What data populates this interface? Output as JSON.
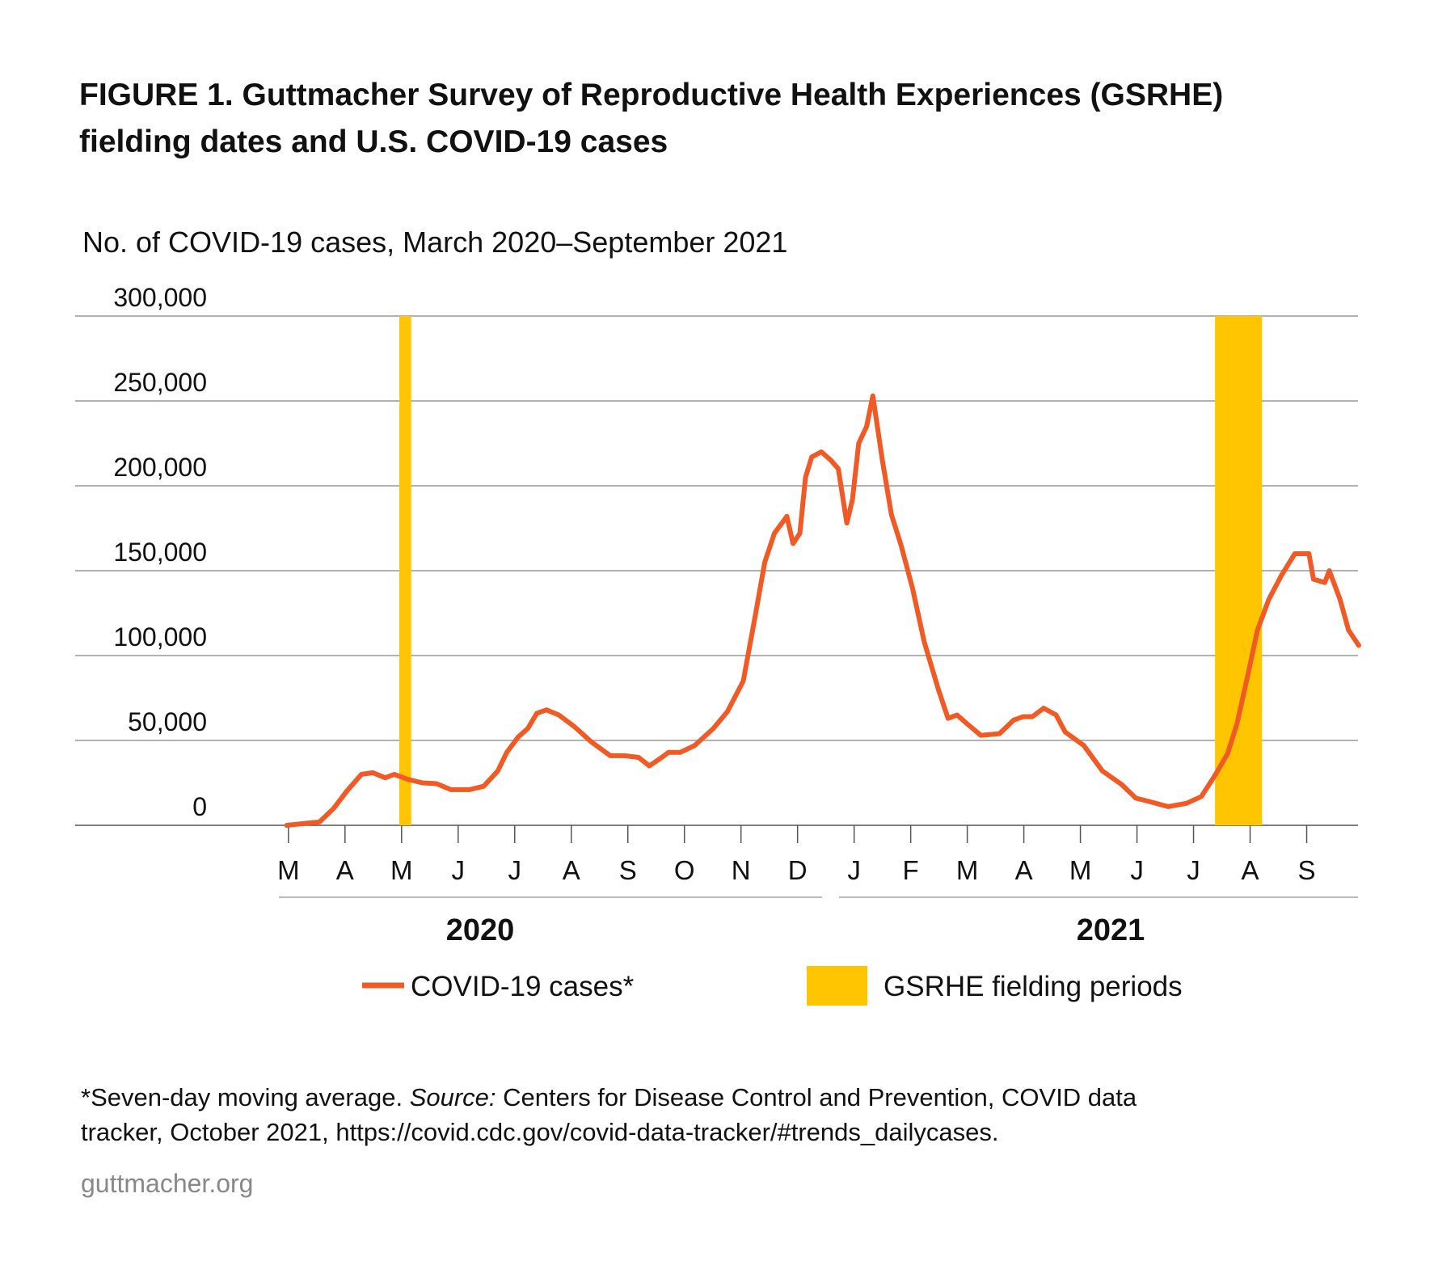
{
  "chart_data": {
    "type": "line",
    "title_lines": [
      "FIGURE 1. Guttmacher Survey of Reproductive Health Experiences (GSRHE)",
      "fielding dates and U.S. COVID-19 cases"
    ],
    "subtitle": "No. of COVID-19 cases, March 2020–September 2021",
    "xlim": [
      -3.77,
      18.95
    ],
    "xticks": [
      {
        "value": 0,
        "label": "M"
      },
      {
        "value": 1,
        "label": "A"
      },
      {
        "value": 2,
        "label": "M"
      },
      {
        "value": 3,
        "label": "J"
      },
      {
        "value": 4,
        "label": "J"
      },
      {
        "value": 5,
        "label": "A"
      },
      {
        "value": 6,
        "label": "S"
      },
      {
        "value": 7,
        "label": "O"
      },
      {
        "value": 8,
        "label": "N"
      },
      {
        "value": 9,
        "label": "D"
      },
      {
        "value": 10,
        "label": "J"
      },
      {
        "value": 11,
        "label": "F"
      },
      {
        "value": 12,
        "label": "M"
      },
      {
        "value": 13,
        "label": "A"
      },
      {
        "value": 14,
        "label": "M"
      },
      {
        "value": 15,
        "label": "J"
      },
      {
        "value": 16,
        "label": "J"
      },
      {
        "value": 17,
        "label": "A"
      },
      {
        "value": 18,
        "label": "S"
      }
    ],
    "years": [
      "2020",
      "2021"
    ],
    "ylim": [
      0,
      300000
    ],
    "yticks": [
      {
        "value": 0,
        "label": "0"
      },
      {
        "value": 50000,
        "label": "50,000"
      },
      {
        "value": 100000,
        "label": "100,000"
      },
      {
        "value": 150000,
        "label": "150,000"
      },
      {
        "value": 200000,
        "label": "200,000"
      },
      {
        "value": 250000,
        "label": "250,000"
      },
      {
        "value": 300000,
        "label": "300,000"
      }
    ],
    "grid": true,
    "series": [
      {
        "name": "COVID-19 cases*",
        "color": "#f15a24",
        "x": [
          -0.03,
          0.55,
          0.8,
          1.04,
          1.29,
          1.49,
          1.71,
          1.87,
          2.12,
          2.37,
          2.62,
          2.87,
          3.2,
          3.45,
          3.7,
          3.86,
          4.06,
          4.23,
          4.39,
          4.56,
          4.78,
          5.06,
          5.36,
          5.69,
          5.94,
          6.19,
          6.38,
          6.6,
          6.72,
          6.93,
          7.18,
          7.51,
          7.76,
          8.04,
          8.26,
          8.42,
          8.59,
          8.81,
          8.92,
          9.04,
          9.14,
          9.25,
          9.42,
          9.59,
          9.72,
          9.87,
          9.97,
          10.08,
          10.22,
          10.33,
          10.5,
          10.66,
          10.83,
          11.03,
          11.24,
          11.49,
          11.66,
          11.82,
          11.99,
          12.24,
          12.57,
          12.82,
          12.99,
          13.15,
          13.35,
          13.57,
          13.73,
          14.06,
          14.39,
          14.73,
          14.98,
          15.22,
          15.55,
          15.88,
          16.14,
          16.39,
          16.6,
          16.77,
          16.97,
          17.13,
          17.33,
          17.55,
          17.79,
          18.04,
          18.12,
          18.32,
          18.4,
          18.59,
          18.74,
          18.92
        ],
        "values": [
          0,
          2000,
          10000,
          20500,
          30000,
          31000,
          28000,
          30000,
          27000,
          25000,
          24500,
          21000,
          21000,
          23000,
          32000,
          43000,
          52000,
          57000,
          66000,
          68000,
          65000,
          58000,
          49000,
          41000,
          41000,
          40000,
          35000,
          40000,
          43000,
          43000,
          47000,
          57000,
          67000,
          85000,
          125000,
          155000,
          172000,
          182000,
          166000,
          172000,
          205000,
          217000,
          220000,
          215000,
          210000,
          178000,
          192000,
          225000,
          235000,
          253000,
          215000,
          183000,
          165000,
          140000,
          108000,
          80000,
          63000,
          65000,
          60000,
          53000,
          54000,
          62000,
          64000,
          64000,
          69000,
          65000,
          55000,
          47000,
          32000,
          24000,
          16000,
          14000,
          11000,
          13000,
          17000,
          30000,
          42000,
          60000,
          90000,
          115000,
          133000,
          147000,
          160000,
          160000,
          145000,
          143000,
          150000,
          133000,
          115000,
          106000
        ]
      }
    ],
    "bands": {
      "name": "GSRHE fielding periods",
      "color": "#ffc600",
      "values": [
        [
          1.96,
          2.17
        ],
        [
          16.38,
          17.21
        ]
      ]
    },
    "footnote_line1": [
      "*Seven-day moving average. ",
      "Source:",
      " Centers for Disease Control and Prevention, COVID data"
    ],
    "footnote_line2": "tracker, October 2021, https://covid.cdc.gov/covid-data-tracker/#trends_dailycases.",
    "site": "guttmacher.org"
  }
}
